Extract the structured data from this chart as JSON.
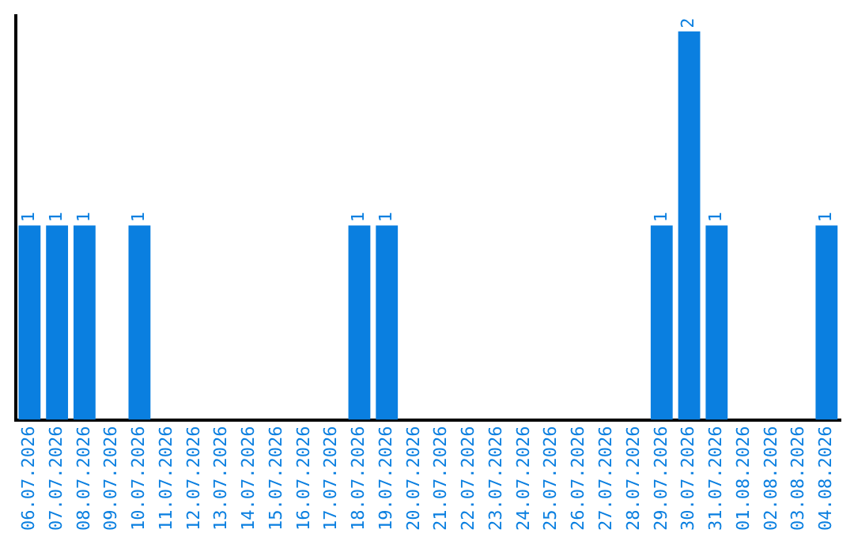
{
  "chart_data": {
    "type": "bar",
    "categories": [
      "06.07.2026",
      "07.07.2026",
      "08.07.2026",
      "09.07.2026",
      "10.07.2026",
      "11.07.2026",
      "12.07.2026",
      "13.07.2026",
      "14.07.2026",
      "15.07.2026",
      "16.07.2026",
      "17.07.2026",
      "18.07.2026",
      "19.07.2026",
      "20.07.2026",
      "21.07.2026",
      "22.07.2026",
      "23.07.2026",
      "24.07.2026",
      "25.07.2026",
      "26.07.2026",
      "27.07.2026",
      "28.07.2026",
      "29.07.2026",
      "30.07.2026",
      "31.07.2026",
      "01.08.2026",
      "02.08.2026",
      "03.08.2026",
      "04.08.2026"
    ],
    "values": [
      1,
      1,
      1,
      0,
      1,
      0,
      0,
      0,
      0,
      0,
      0,
      0,
      1,
      1,
      0,
      0,
      0,
      0,
      0,
      0,
      0,
      0,
      0,
      1,
      2,
      1,
      0,
      0,
      0,
      1
    ],
    "value_labels": [
      "1",
      "1",
      "1",
      null,
      "1",
      null,
      null,
      null,
      null,
      null,
      null,
      null,
      "1",
      "1",
      null,
      null,
      null,
      null,
      null,
      null,
      null,
      null,
      null,
      "1",
      "2",
      "1",
      null,
      null,
      null,
      "1"
    ],
    "color": "#0a7fe0",
    "ylim": [
      0,
      2.08
    ],
    "tick_labels": "x",
    "grid": false,
    "legend": false
  }
}
